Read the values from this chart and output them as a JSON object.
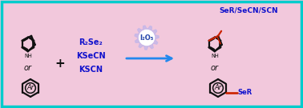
{
  "bg_color": "#f2c8dc",
  "border_color": "#00cccc",
  "border_lw": 2.5,
  "reagent1": "R₂Se₂",
  "reagent2": "KSeCN",
  "reagent3": "KSCN",
  "catalyst": "I₂O₅",
  "product_label": "SeR/SeCN/SCN",
  "product_label2": "SeR",
  "arrow_color": "#2288ee",
  "reagent_color": "#1111cc",
  "product_color_main": "#1111cc",
  "bond_color_red": "#cc2200",
  "bond_color_black": "#111111",
  "gear_color": "#c8b8e8",
  "gear_text_color": "#2244aa",
  "figsize": [
    3.78,
    1.35
  ],
  "dpi": 100
}
